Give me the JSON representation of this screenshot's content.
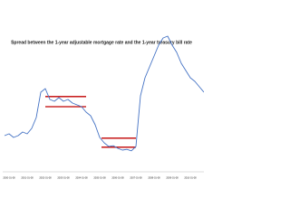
{
  "chart_data": {
    "type": "line",
    "title": "Spread between the 1-year adjustable mortgage rate and the 1-year treasury bill rate",
    "categories": [
      null,
      "2000-01-08",
      null,
      null,
      null,
      "2001-01-08",
      null,
      null,
      null,
      "2002-01-08",
      null,
      null,
      null,
      "2003-01-08",
      null,
      null,
      null,
      "2004-01-08",
      null,
      null,
      null,
      "2005-01-08",
      null,
      null,
      null,
      "2006-01-08",
      null,
      null,
      null,
      "2007-01-08",
      null,
      null,
      null,
      "2008-01-08",
      null,
      null,
      null,
      "2009-01-08",
      null,
      null,
      null,
      "2010-01-08",
      null,
      null,
      null
    ],
    "series": [
      {
        "color": "#4472c4",
        "values": [
          1.0,
          1.05,
          0.95,
          1.0,
          1.1,
          1.05,
          1.2,
          1.5,
          2.2,
          2.3,
          2.0,
          1.95,
          2.05,
          1.95,
          2.0,
          1.9,
          1.85,
          1.8,
          1.65,
          1.55,
          1.3,
          0.95,
          0.8,
          0.7,
          0.72,
          0.65,
          0.6,
          0.62,
          0.58,
          0.7,
          2.1,
          2.6,
          2.9,
          3.2,
          3.5,
          3.7,
          3.75,
          3.5,
          3.3,
          3.0,
          2.8,
          2.6,
          2.5,
          2.35,
          2.2
        ]
      }
    ],
    "reference_lines": {
      "color": "#c00000",
      "values": [
        2.08,
        1.8,
        0.93,
        0.68
      ]
    },
    "ylim": [
      0,
      4
    ]
  }
}
